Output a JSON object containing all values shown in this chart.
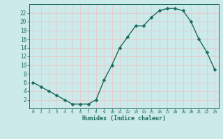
{
  "x": [
    0,
    1,
    2,
    3,
    4,
    5,
    6,
    7,
    8,
    9,
    10,
    11,
    12,
    13,
    14,
    15,
    16,
    17,
    18,
    19,
    20,
    21,
    22,
    23
  ],
  "y": [
    6,
    5,
    4,
    3,
    2,
    1,
    1,
    1,
    2,
    6.5,
    10,
    14,
    16.5,
    19,
    19,
    21,
    22.5,
    23,
    23,
    22.5,
    20,
    16,
    13,
    9
  ],
  "line_color": "#1a6b5a",
  "marker": "D",
  "marker_size": 2.5,
  "bg_color": "#cceaea",
  "grid_color": "#c8c8d8",
  "grid_pink_color": "#e8c8c8",
  "xlabel": "Humidex (Indice chaleur)",
  "ylim": [
    0,
    24
  ],
  "xlim": [
    -0.5,
    23.5
  ],
  "yticks": [
    2,
    4,
    6,
    8,
    10,
    12,
    14,
    16,
    18,
    20,
    22
  ],
  "xticks": [
    0,
    1,
    2,
    3,
    4,
    5,
    6,
    7,
    8,
    9,
    10,
    11,
    12,
    13,
    14,
    15,
    16,
    17,
    18,
    19,
    20,
    21,
    22,
    23
  ]
}
